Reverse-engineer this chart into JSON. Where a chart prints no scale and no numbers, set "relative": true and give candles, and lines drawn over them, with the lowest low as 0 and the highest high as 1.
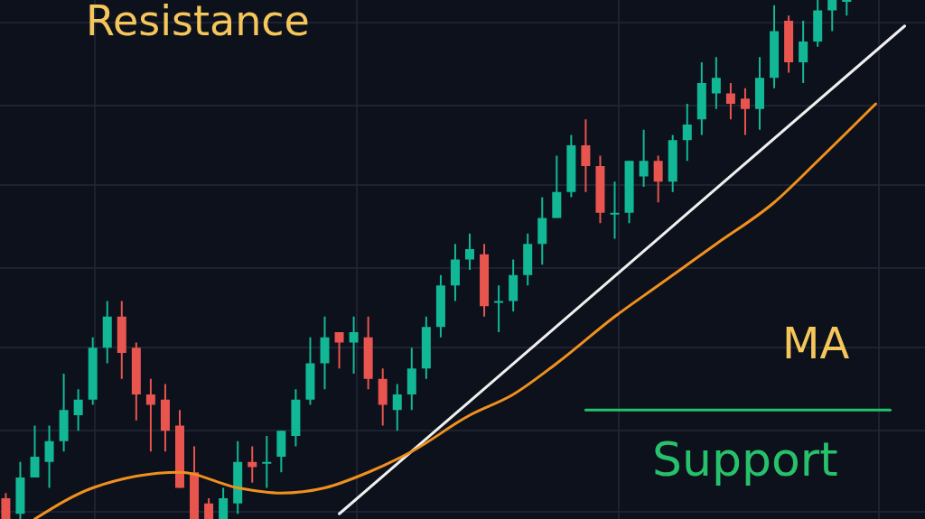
{
  "chart_data": {
    "type": "candlestick",
    "relative": true,
    "grid": true,
    "categories": [
      null,
      null,
      null,
      null,
      null,
      null,
      null,
      null,
      null,
      null,
      null,
      null,
      null,
      null,
      null,
      null,
      null,
      null,
      null,
      null,
      null,
      null,
      null,
      null,
      null,
      null,
      null,
      null,
      null,
      null,
      null,
      null,
      null,
      null,
      null,
      null,
      null,
      null,
      null,
      null,
      null,
      null,
      null,
      null,
      null,
      null,
      null,
      null,
      null,
      null,
      null,
      null,
      null,
      null,
      null,
      null,
      null,
      null,
      null,
      null,
      null,
      null,
      null,
      null
    ],
    "ohlc": [
      [
        0.04,
        0.05,
        0,
        0
      ],
      [
        0.01,
        0.11,
        0,
        0.08
      ],
      [
        0.08,
        0.18,
        0.08,
        0.12
      ],
      [
        0.11,
        0.18,
        0.06,
        0.15
      ],
      [
        0.15,
        0.28,
        0.13,
        0.21
      ],
      [
        0.2,
        0.25,
        0.17,
        0.23
      ],
      [
        0.23,
        0.35,
        0.22,
        0.33
      ],
      [
        0.33,
        0.42,
        0.3,
        0.39
      ],
      [
        0.39,
        0.42,
        0.27,
        0.32
      ],
      [
        0.33,
        0.34,
        0.19,
        0.24
      ],
      [
        0.24,
        0.27,
        0.13,
        0.22
      ],
      [
        0.23,
        0.26,
        0.13,
        0.17
      ],
      [
        0.18,
        0.21,
        0.06,
        0.06
      ],
      [
        0.09,
        0.14,
        0,
        0
      ],
      [
        0.03,
        0.04,
        0,
        0
      ],
      [
        0,
        0.06,
        0,
        0.04
      ],
      [
        0.03,
        0.15,
        0.01,
        0.11
      ],
      [
        0.11,
        0.14,
        0.07,
        0.1
      ],
      [
        0.11,
        0.16,
        0.06,
        0.11
      ],
      [
        0.12,
        0.17,
        0.09,
        0.17
      ],
      [
        0.16,
        0.25,
        0.14,
        0.23
      ],
      [
        0.23,
        0.35,
        0.22,
        0.3
      ],
      [
        0.3,
        0.39,
        0.25,
        0.35
      ],
      [
        0.36,
        0.36,
        0.29,
        0.34
      ],
      [
        0.34,
        0.39,
        0.28,
        0.36
      ],
      [
        0.35,
        0.39,
        0.25,
        0.27
      ],
      [
        0.27,
        0.29,
        0.18,
        0.22
      ],
      [
        0.21,
        0.26,
        0.17,
        0.24
      ],
      [
        0.24,
        0.33,
        0.21,
        0.29
      ],
      [
        0.29,
        0.39,
        0.27,
        0.37
      ],
      [
        0.37,
        0.47,
        0.35,
        0.45
      ],
      [
        0.45,
        0.53,
        0.42,
        0.5
      ],
      [
        0.5,
        0.55,
        0.48,
        0.52
      ],
      [
        0.51,
        0.53,
        0.39,
        0.41
      ],
      [
        0.42,
        0.45,
        0.36,
        0.42
      ],
      [
        0.42,
        0.5,
        0.4,
        0.47
      ],
      [
        0.47,
        0.55,
        0.45,
        0.53
      ],
      [
        0.53,
        0.62,
        0.49,
        0.58
      ],
      [
        0.58,
        0.7,
        0.58,
        0.63
      ],
      [
        0.63,
        0.74,
        0.62,
        0.72
      ],
      [
        0.72,
        0.77,
        0.63,
        0.68
      ],
      [
        0.68,
        0.7,
        0.57,
        0.59
      ],
      [
        0.59,
        0.65,
        0.54,
        0.59
      ],
      [
        0.59,
        0.69,
        0.57,
        0.69
      ],
      [
        0.66,
        0.75,
        0.64,
        0.69
      ],
      [
        0.69,
        0.7,
        0.61,
        0.65
      ],
      [
        0.65,
        0.74,
        0.63,
        0.73
      ],
      [
        0.73,
        0.8,
        0.69,
        0.76
      ],
      [
        0.77,
        0.88,
        0.74,
        0.84
      ],
      [
        0.82,
        0.89,
        0.79,
        0.85
      ],
      [
        0.82,
        0.84,
        0.77,
        0.8
      ],
      [
        0.81,
        0.83,
        0.74,
        0.79
      ],
      [
        0.79,
        0.89,
        0.75,
        0.85
      ],
      [
        0.85,
        0.99,
        0.83,
        0.94
      ],
      [
        0.96,
        0.97,
        0.86,
        0.88
      ],
      [
        0.88,
        0.96,
        0.84,
        0.92
      ],
      [
        0.92,
        1,
        0.91,
        0.98
      ],
      [
        0.98,
        1,
        0.94,
        1
      ],
      [
        1,
        1,
        0.97,
        1
      ],
      null,
      null,
      null,
      null,
      null
    ],
    "colors": [
      "#e8554e",
      "#12b896",
      "#12b896",
      "#12b896",
      "#12b896",
      "#12b896",
      "#12b896",
      "#12b896",
      "#e8554e",
      "#e8554e",
      "#e8554e",
      "#e8554e",
      "#e8554e",
      "#e8554e",
      "#e8554e",
      "#12b896",
      "#12b896",
      "#e8554e",
      "#12b896",
      "#12b896",
      "#12b896",
      "#12b896",
      "#12b896",
      "#e8554e",
      "#12b896",
      "#e8554e",
      "#e8554e",
      "#12b896",
      "#12b896",
      "#12b896",
      "#12b896",
      "#12b896",
      "#12b896",
      "#e8554e",
      "#12b896",
      "#12b896",
      "#12b896",
      "#12b896",
      "#12b896",
      "#12b896",
      "#e8554e",
      "#e8554e",
      "#12b896",
      "#12b896",
      "#12b896",
      "#e8554e",
      "#12b896",
      "#12b896",
      "#12b896",
      "#12b896",
      "#e8554e",
      "#e8554e",
      "#12b896",
      "#12b896",
      "#e8554e",
      "#12b896",
      "#12b896",
      "#12b896",
      "#12b896",
      null,
      null,
      null,
      null,
      null
    ],
    "series": [
      {
        "type": "line",
        "color": "#f0f0f0",
        "values": [
          null,
          null,
          null,
          null,
          null,
          null,
          null,
          null,
          null,
          null,
          null,
          null,
          null,
          null,
          null,
          null,
          null,
          null,
          null,
          null,
          null,
          null,
          null,
          0.01,
          null,
          null,
          null,
          null,
          null,
          null,
          null,
          null,
          null,
          null,
          null,
          null,
          null,
          null,
          null,
          null,
          null,
          null,
          null,
          null,
          null,
          null,
          null,
          null,
          null,
          null,
          null,
          null,
          null,
          null,
          null,
          null,
          null,
          null,
          null,
          null,
          null,
          null,
          0.95,
          null
        ]
      },
      {
        "type": "line",
        "color": "#f0901e",
        "values": [
          null,
          null,
          0,
          null,
          null,
          null,
          0.06,
          null,
          null,
          null,
          null,
          null,
          0.09,
          null,
          null,
          null,
          0.06,
          null,
          null,
          0.05,
          null,
          null,
          0.06,
          null,
          null,
          0.09,
          null,
          null,
          0.13,
          null,
          null,
          null,
          0.2,
          null,
          null,
          0.24,
          null,
          null,
          0.3,
          null,
          null,
          null,
          0.39,
          null,
          null,
          0.45,
          null,
          null,
          null,
          0.53,
          null,
          null,
          null,
          0.61,
          null,
          null,
          0.69,
          null,
          null,
          null,
          0.8,
          null,
          null,
          null
        ]
      },
      {
        "type": "line",
        "color": "#22c36b",
        "values": [
          null,
          null,
          null,
          null,
          null,
          null,
          null,
          null,
          null,
          null,
          null,
          null,
          null,
          null,
          null,
          null,
          null,
          null,
          null,
          null,
          null,
          null,
          null,
          null,
          null,
          null,
          null,
          null,
          null,
          null,
          null,
          null,
          null,
          null,
          null,
          null,
          null,
          null,
          null,
          null,
          0.21,
          null,
          null,
          null,
          null,
          null,
          null,
          null,
          null,
          null,
          null,
          null,
          null,
          null,
          null,
          null,
          null,
          null,
          null,
          null,
          null,
          0.21,
          null,
          null
        ]
      }
    ],
    "annotations": [
      "Resistance",
      "MA",
      "Support"
    ]
  }
}
